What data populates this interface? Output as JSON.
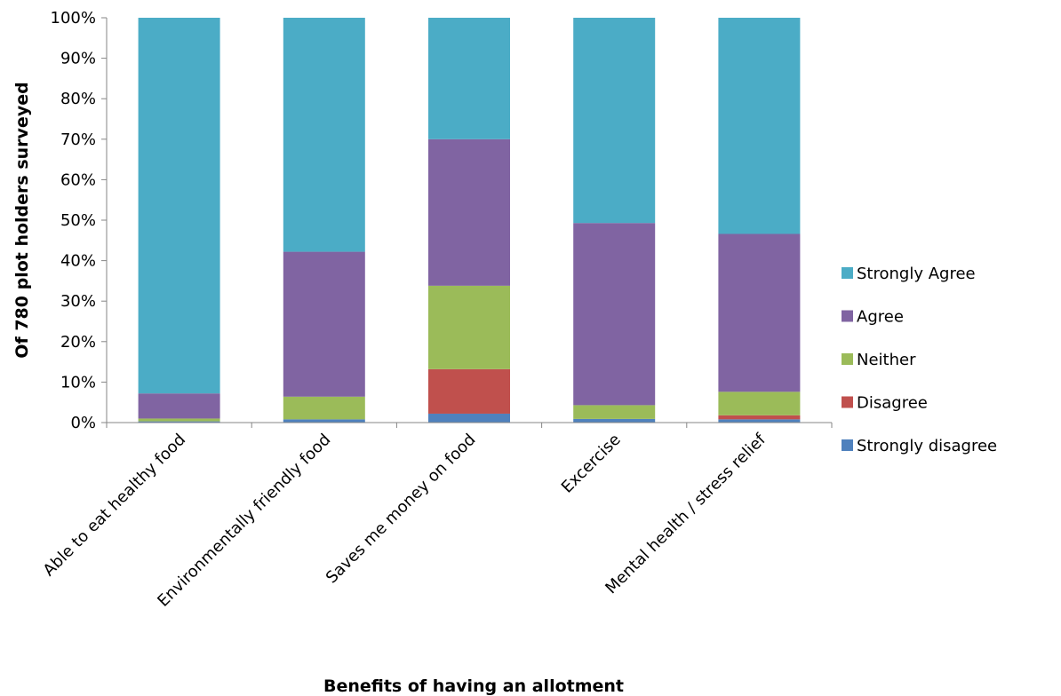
{
  "chart_data": {
    "type": "bar",
    "stacked": true,
    "categories": [
      "Able to eat healthy food",
      "Environmentally friendly food",
      "Saves me money on food",
      "Excercise",
      "Mental health / stress relief"
    ],
    "series": [
      {
        "name": "Strongly disagree",
        "color": "#4F81BD",
        "values": [
          0.3,
          0.8,
          2.2,
          0.9,
          0.8
        ]
      },
      {
        "name": "Disagree",
        "color": "#C0504D",
        "values": [
          0.0,
          0.0,
          11.0,
          0.0,
          1.0
        ]
      },
      {
        "name": "Neither",
        "color": "#9BBB59",
        "values": [
          0.7,
          5.6,
          20.6,
          3.4,
          5.8
        ]
      },
      {
        "name": "Agree",
        "color": "#8064A2",
        "values": [
          6.2,
          35.8,
          36.2,
          45.0,
          39.0
        ]
      },
      {
        "name": "Strongly Agree",
        "color": "#4BACC6",
        "values": [
          92.8,
          57.8,
          30.0,
          50.7,
          53.4
        ]
      }
    ],
    "xlabel": "Benefits of having an allotment",
    "ylabel": "Of 780 plot holders surveyed",
    "ylim": [
      0,
      100
    ],
    "ytick_labels": [
      "0%",
      "10%",
      "20%",
      "30%",
      "40%",
      "50%",
      "60%",
      "70%",
      "80%",
      "90%",
      "100%"
    ],
    "legend_order": [
      "Strongly Agree",
      "Agree",
      "Neither",
      "Disagree",
      "Strongly disagree"
    ],
    "legend_position": "right",
    "grid": false
  }
}
